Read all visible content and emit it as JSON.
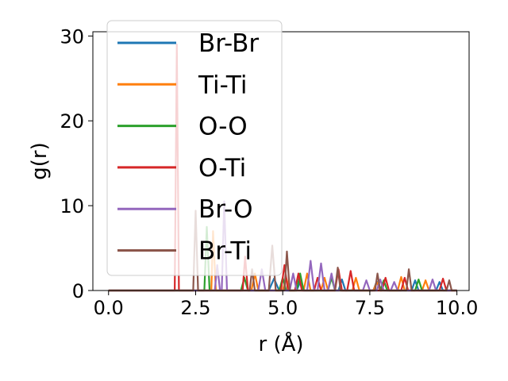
{
  "chart_data": {
    "type": "line",
    "title": "",
    "xlabel": "r (Å)",
    "ylabel": "g(r)",
    "xlim": [
      -0.45,
      10.35
    ],
    "ylim": [
      0,
      30.5
    ],
    "xticks": [
      0.0,
      2.5,
      5.0,
      7.5,
      10.0
    ],
    "xtick_labels": [
      "0.0",
      "2.5",
      "5.0",
      "7.5",
      "10.0"
    ],
    "yticks": [
      0,
      10,
      20,
      30
    ],
    "ytick_labels": [
      "0",
      "10",
      "20",
      "30"
    ],
    "grid": false,
    "legend_position": "upper-left",
    "series": [
      {
        "name": "Br-Br",
        "color": "#1f77b4",
        "points": [
          [
            0.0,
            0
          ],
          [
            4.6,
            0
          ],
          [
            4.75,
            1.4
          ],
          [
            4.9,
            0
          ],
          [
            5.4,
            0
          ],
          [
            5.5,
            1.0
          ],
          [
            5.6,
            0
          ],
          [
            6.6,
            0
          ],
          [
            6.7,
            1.3
          ],
          [
            6.8,
            0
          ],
          [
            7.6,
            0
          ],
          [
            7.7,
            1.1
          ],
          [
            7.8,
            0
          ],
          [
            8.7,
            0
          ],
          [
            8.8,
            1.2
          ],
          [
            8.9,
            0
          ],
          [
            9.4,
            0
          ],
          [
            9.5,
            1.0
          ],
          [
            9.6,
            0
          ],
          [
            10.0,
            0
          ]
        ]
      },
      {
        "name": "Ti-Ti",
        "color": "#ff7f0e",
        "points": [
          [
            0.0,
            0
          ],
          [
            2.95,
            0
          ],
          [
            3.0,
            7.0
          ],
          [
            3.08,
            0
          ],
          [
            4.1,
            0
          ],
          [
            4.2,
            2.0
          ],
          [
            4.3,
            0
          ],
          [
            5.0,
            0
          ],
          [
            5.1,
            1.5
          ],
          [
            5.2,
            0
          ],
          [
            5.6,
            0
          ],
          [
            5.7,
            2.0
          ],
          [
            5.8,
            0
          ],
          [
            6.1,
            0
          ],
          [
            6.2,
            1.5
          ],
          [
            6.3,
            0
          ],
          [
            7.0,
            0
          ],
          [
            7.1,
            1.5
          ],
          [
            7.2,
            0
          ],
          [
            7.6,
            0
          ],
          [
            7.7,
            1.0
          ],
          [
            7.8,
            0
          ],
          [
            8.3,
            0
          ],
          [
            8.4,
            1.6
          ],
          [
            8.5,
            0
          ],
          [
            9.0,
            0
          ],
          [
            9.1,
            1.2
          ],
          [
            9.2,
            0
          ],
          [
            10.0,
            0
          ]
        ]
      },
      {
        "name": "O-O",
        "color": "#2ca02c",
        "points": [
          [
            0.0,
            0
          ],
          [
            2.75,
            0
          ],
          [
            2.82,
            7.5
          ],
          [
            2.9,
            0
          ],
          [
            3.8,
            0
          ],
          [
            3.9,
            1.5
          ],
          [
            4.0,
            0
          ],
          [
            4.9,
            0
          ],
          [
            5.0,
            1.5
          ],
          [
            5.1,
            0
          ],
          [
            5.4,
            0
          ],
          [
            5.5,
            2.0
          ],
          [
            5.6,
            0
          ],
          [
            6.3,
            0
          ],
          [
            6.4,
            1.5
          ],
          [
            6.5,
            0
          ],
          [
            7.8,
            0
          ],
          [
            7.9,
            1.2
          ],
          [
            8.0,
            0
          ],
          [
            8.8,
            0
          ],
          [
            8.9,
            1.3
          ],
          [
            9.0,
            0
          ],
          [
            10.0,
            0
          ]
        ]
      },
      {
        "name": "O-Ti",
        "color": "#d62728",
        "points": [
          [
            0.0,
            0
          ],
          [
            1.9,
            0
          ],
          [
            1.96,
            29.0
          ],
          [
            2.02,
            0
          ],
          [
            3.85,
            0
          ],
          [
            3.92,
            4.0
          ],
          [
            4.0,
            0
          ],
          [
            4.95,
            0
          ],
          [
            5.05,
            3.0
          ],
          [
            5.15,
            0
          ],
          [
            5.35,
            0
          ],
          [
            5.45,
            2.0
          ],
          [
            5.55,
            0
          ],
          [
            5.9,
            0
          ],
          [
            6.0,
            1.5
          ],
          [
            6.1,
            0
          ],
          [
            6.5,
            0
          ],
          [
            6.6,
            2.5
          ],
          [
            6.7,
            0
          ],
          [
            6.85,
            0
          ],
          [
            6.95,
            2.3
          ],
          [
            7.05,
            0
          ],
          [
            7.85,
            0
          ],
          [
            7.95,
            1.5
          ],
          [
            8.05,
            0
          ],
          [
            8.4,
            0
          ],
          [
            8.5,
            1.5
          ],
          [
            8.6,
            0
          ],
          [
            9.5,
            0
          ],
          [
            9.6,
            1.4
          ],
          [
            9.7,
            0
          ],
          [
            10.0,
            0
          ]
        ]
      },
      {
        "name": "Br-O",
        "color": "#9467bd",
        "points": [
          [
            0.0,
            0
          ],
          [
            3.05,
            0
          ],
          [
            3.12,
            3.0
          ],
          [
            3.2,
            0
          ],
          [
            3.25,
            0
          ],
          [
            3.32,
            10.5
          ],
          [
            3.4,
            0
          ],
          [
            4.3,
            0
          ],
          [
            4.4,
            2.5
          ],
          [
            4.5,
            0
          ],
          [
            5.2,
            0
          ],
          [
            5.3,
            2.0
          ],
          [
            5.4,
            0
          ],
          [
            5.7,
            0
          ],
          [
            5.8,
            3.5
          ],
          [
            5.9,
            0
          ],
          [
            6.0,
            0
          ],
          [
            6.1,
            3.2
          ],
          [
            6.2,
            0
          ],
          [
            6.3,
            0
          ],
          [
            6.4,
            2.0
          ],
          [
            6.5,
            0
          ],
          [
            7.3,
            0
          ],
          [
            7.4,
            1.2
          ],
          [
            7.5,
            0
          ],
          [
            7.7,
            0
          ],
          [
            7.8,
            1.3
          ],
          [
            7.9,
            0
          ],
          [
            8.1,
            0
          ],
          [
            8.2,
            1.0
          ],
          [
            8.3,
            0
          ],
          [
            9.2,
            0
          ],
          [
            9.3,
            1.3
          ],
          [
            9.4,
            0
          ],
          [
            10.0,
            0
          ]
        ]
      },
      {
        "name": "Br-Ti",
        "color": "#8c564b",
        "points": [
          [
            0.0,
            0
          ],
          [
            2.43,
            0
          ],
          [
            2.5,
            9.4
          ],
          [
            2.57,
            0
          ],
          [
            4.05,
            0
          ],
          [
            4.12,
            2.5
          ],
          [
            4.2,
            0
          ],
          [
            4.6,
            0
          ],
          [
            4.7,
            5.3
          ],
          [
            4.8,
            0
          ],
          [
            5.05,
            0
          ],
          [
            5.12,
            4.6
          ],
          [
            5.2,
            0
          ],
          [
            6.5,
            0
          ],
          [
            6.58,
            2.7
          ],
          [
            6.66,
            0
          ],
          [
            7.65,
            0
          ],
          [
            7.72,
            2.0
          ],
          [
            7.8,
            0
          ],
          [
            8.55,
            0
          ],
          [
            8.62,
            2.5
          ],
          [
            8.7,
            0
          ],
          [
            9.7,
            0
          ],
          [
            9.78,
            1.2
          ],
          [
            9.85,
            0
          ],
          [
            10.0,
            0
          ]
        ]
      }
    ]
  }
}
